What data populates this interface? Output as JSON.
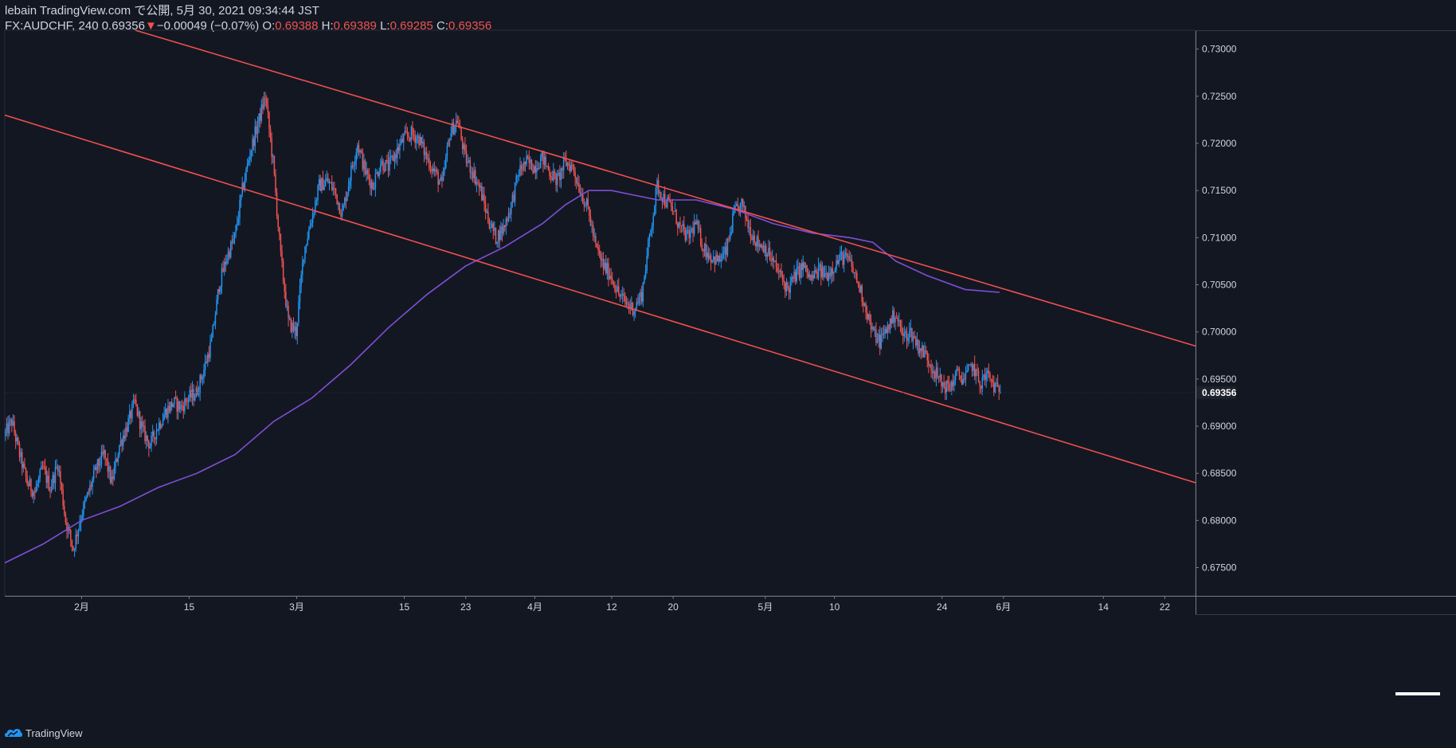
{
  "header": {
    "title": "lebain TradingView.com で公開, 5月 30, 2021 09:34:44 JST",
    "symbol": "FX:AUDCHF, 240",
    "last": "0.69356",
    "change_arrow": "▼",
    "change": "−0.00049 (−0.07%)",
    "o_label": "O:",
    "o": "0.69388",
    "h_label": "H:",
    "h": "0.69389",
    "l_label": "L:",
    "l": "0.69285",
    "c_label": "C:",
    "c": "0.69356"
  },
  "footer": {
    "brand": "TradingView",
    "logo_icon": "tradingview-logo-icon"
  },
  "colors": {
    "background": "#131722",
    "up": "#2196f3",
    "down": "#ef5350",
    "channel": "#f0504d",
    "ma": "#7e4fd6",
    "axis_text": "#d1d4dc",
    "last_price_bg": "#1e222d"
  },
  "chart_data": {
    "type": "candlestick",
    "symbol": "FX:AUDCHF",
    "timeframe": "240",
    "ylim": [
      0.672,
      0.732
    ],
    "y_ticks": [
      "0.73000",
      "0.72500",
      "0.72000",
      "0.71500",
      "0.71000",
      "0.70500",
      "0.70000",
      "0.69500",
      "0.69000",
      "0.68500",
      "0.68000",
      "0.67500"
    ],
    "last_price_label": "0.69356",
    "x_ticks": [
      {
        "label": "2月",
        "day": 0
      },
      {
        "label": "15",
        "day": 14
      },
      {
        "label": "3月",
        "day": 28
      },
      {
        "label": "15",
        "day": 42
      },
      {
        "label": "23",
        "day": 50
      },
      {
        "label": "4月",
        "day": 59
      },
      {
        "label": "12",
        "day": 69
      },
      {
        "label": "20",
        "day": 77
      },
      {
        "label": "5月",
        "day": 89
      },
      {
        "label": "10",
        "day": 98
      },
      {
        "label": "24",
        "day": 112
      },
      {
        "label": "6月",
        "day": 120
      },
      {
        "label": "14",
        "day": 133
      },
      {
        "label": "22",
        "day": 141
      }
    ],
    "x_day_range": [
      -10,
      145
    ],
    "price_path": [
      [
        -10,
        0.689
      ],
      [
        -9,
        0.6905
      ],
      [
        -8,
        0.687
      ],
      [
        -7,
        0.684
      ],
      [
        -6,
        0.683
      ],
      [
        -5,
        0.6855
      ],
      [
        -4,
        0.6835
      ],
      [
        -3,
        0.686
      ],
      [
        -2,
        0.68
      ],
      [
        -1,
        0.677
      ],
      [
        0,
        0.6805
      ],
      [
        1,
        0.683
      ],
      [
        2,
        0.6855
      ],
      [
        3,
        0.687
      ],
      [
        4,
        0.684
      ],
      [
        5,
        0.688
      ],
      [
        6,
        0.69
      ],
      [
        7,
        0.6925
      ],
      [
        8,
        0.6895
      ],
      [
        9,
        0.688
      ],
      [
        10,
        0.69
      ],
      [
        11,
        0.6915
      ],
      [
        12,
        0.6925
      ],
      [
        13,
        0.692
      ],
      [
        14,
        0.693
      ],
      [
        15,
        0.6935
      ],
      [
        16,
        0.696
      ],
      [
        17,
        0.699
      ],
      [
        18,
        0.705
      ],
      [
        19,
        0.708
      ],
      [
        20,
        0.71
      ],
      [
        21,
        0.715
      ],
      [
        22,
        0.719
      ],
      [
        23,
        0.722
      ],
      [
        24,
        0.725
      ],
      [
        25,
        0.718
      ],
      [
        26,
        0.708
      ],
      [
        27,
        0.701
      ],
      [
        28,
        0.7
      ],
      [
        29,
        0.7085
      ],
      [
        30,
        0.712
      ],
      [
        31,
        0.7155
      ],
      [
        32,
        0.716
      ],
      [
        33,
        0.715
      ],
      [
        34,
        0.7125
      ],
      [
        35,
        0.7165
      ],
      [
        36,
        0.72
      ],
      [
        37,
        0.717
      ],
      [
        38,
        0.7155
      ],
      [
        39,
        0.718
      ],
      [
        40,
        0.7175
      ],
      [
        41,
        0.719
      ],
      [
        42,
        0.7205
      ],
      [
        43,
        0.721
      ],
      [
        44,
        0.7205
      ],
      [
        45,
        0.7185
      ],
      [
        46,
        0.717
      ],
      [
        47,
        0.7155
      ],
      [
        48,
        0.721
      ],
      [
        49,
        0.7225
      ],
      [
        50,
        0.7185
      ],
      [
        51,
        0.717
      ],
      [
        52,
        0.715
      ],
      [
        53,
        0.712
      ],
      [
        54,
        0.71
      ],
      [
        55,
        0.711
      ],
      [
        56,
        0.7135
      ],
      [
        57,
        0.717
      ],
      [
        58,
        0.718
      ],
      [
        59,
        0.7175
      ],
      [
        60,
        0.7185
      ],
      [
        61,
        0.717
      ],
      [
        62,
        0.716
      ],
      [
        63,
        0.718
      ],
      [
        64,
        0.7175
      ],
      [
        65,
        0.715
      ],
      [
        66,
        0.713
      ],
      [
        67,
        0.709
      ],
      [
        68,
        0.707
      ],
      [
        69,
        0.706
      ],
      [
        70,
        0.704
      ],
      [
        71,
        0.703
      ],
      [
        72,
        0.7025
      ],
      [
        73,
        0.704
      ],
      [
        74,
        0.71
      ],
      [
        75,
        0.7155
      ],
      [
        76,
        0.714
      ],
      [
        77,
        0.713
      ],
      [
        78,
        0.711
      ],
      [
        79,
        0.71
      ],
      [
        80,
        0.7115
      ],
      [
        81,
        0.709
      ],
      [
        82,
        0.708
      ],
      [
        83,
        0.7075
      ],
      [
        84,
        0.7085
      ],
      [
        85,
        0.7125
      ],
      [
        86,
        0.7135
      ],
      [
        87,
        0.711
      ],
      [
        88,
        0.7095
      ],
      [
        89,
        0.709
      ],
      [
        90,
        0.7075
      ],
      [
        91,
        0.706
      ],
      [
        92,
        0.7045
      ],
      [
        93,
        0.706
      ],
      [
        94,
        0.707
      ],
      [
        95,
        0.7055
      ],
      [
        96,
        0.7065
      ],
      [
        97,
        0.706
      ],
      [
        98,
        0.707
      ],
      [
        99,
        0.708
      ],
      [
        100,
        0.7075
      ],
      [
        101,
        0.7055
      ],
      [
        102,
        0.703
      ],
      [
        103,
        0.7
      ],
      [
        104,
        0.699
      ],
      [
        105,
        0.7005
      ],
      [
        106,
        0.702
      ],
      [
        107,
        0.6995
      ],
      [
        108,
        0.7
      ],
      [
        109,
        0.6985
      ],
      [
        110,
        0.6975
      ],
      [
        111,
        0.696
      ],
      [
        112,
        0.6945
      ],
      [
        113,
        0.694
      ],
      [
        114,
        0.6955
      ],
      [
        115,
        0.695
      ],
      [
        116,
        0.6965
      ],
      [
        117,
        0.6945
      ],
      [
        118,
        0.6955
      ],
      [
        119,
        0.694
      ],
      [
        119.5,
        0.69356
      ]
    ],
    "ma_path": [
      [
        -10,
        0.6755
      ],
      [
        -5,
        0.6775
      ],
      [
        0,
        0.68
      ],
      [
        5,
        0.6815
      ],
      [
        10,
        0.6835
      ],
      [
        15,
        0.685
      ],
      [
        20,
        0.687
      ],
      [
        25,
        0.6905
      ],
      [
        30,
        0.693
      ],
      [
        35,
        0.6965
      ],
      [
        40,
        0.7005
      ],
      [
        45,
        0.704
      ],
      [
        50,
        0.707
      ],
      [
        55,
        0.709
      ],
      [
        60,
        0.7115
      ],
      [
        63,
        0.7135
      ],
      [
        66,
        0.715
      ],
      [
        69,
        0.715
      ],
      [
        72,
        0.7145
      ],
      [
        75,
        0.714
      ],
      [
        80,
        0.714
      ],
      [
        85,
        0.713
      ],
      [
        90,
        0.7115
      ],
      [
        95,
        0.7105
      ],
      [
        100,
        0.71
      ],
      [
        103,
        0.7095
      ],
      [
        106,
        0.7075
      ],
      [
        110,
        0.706
      ],
      [
        115,
        0.7045
      ],
      [
        119.5,
        0.7042
      ]
    ],
    "channel_lines": [
      {
        "name": "upper",
        "from": [
          7.0,
          0.732
        ],
        "to": [
          145,
          0.6985
        ]
      },
      {
        "name": "lower",
        "from": [
          -10,
          0.723
        ],
        "to": [
          145,
          0.684
        ]
      }
    ]
  }
}
